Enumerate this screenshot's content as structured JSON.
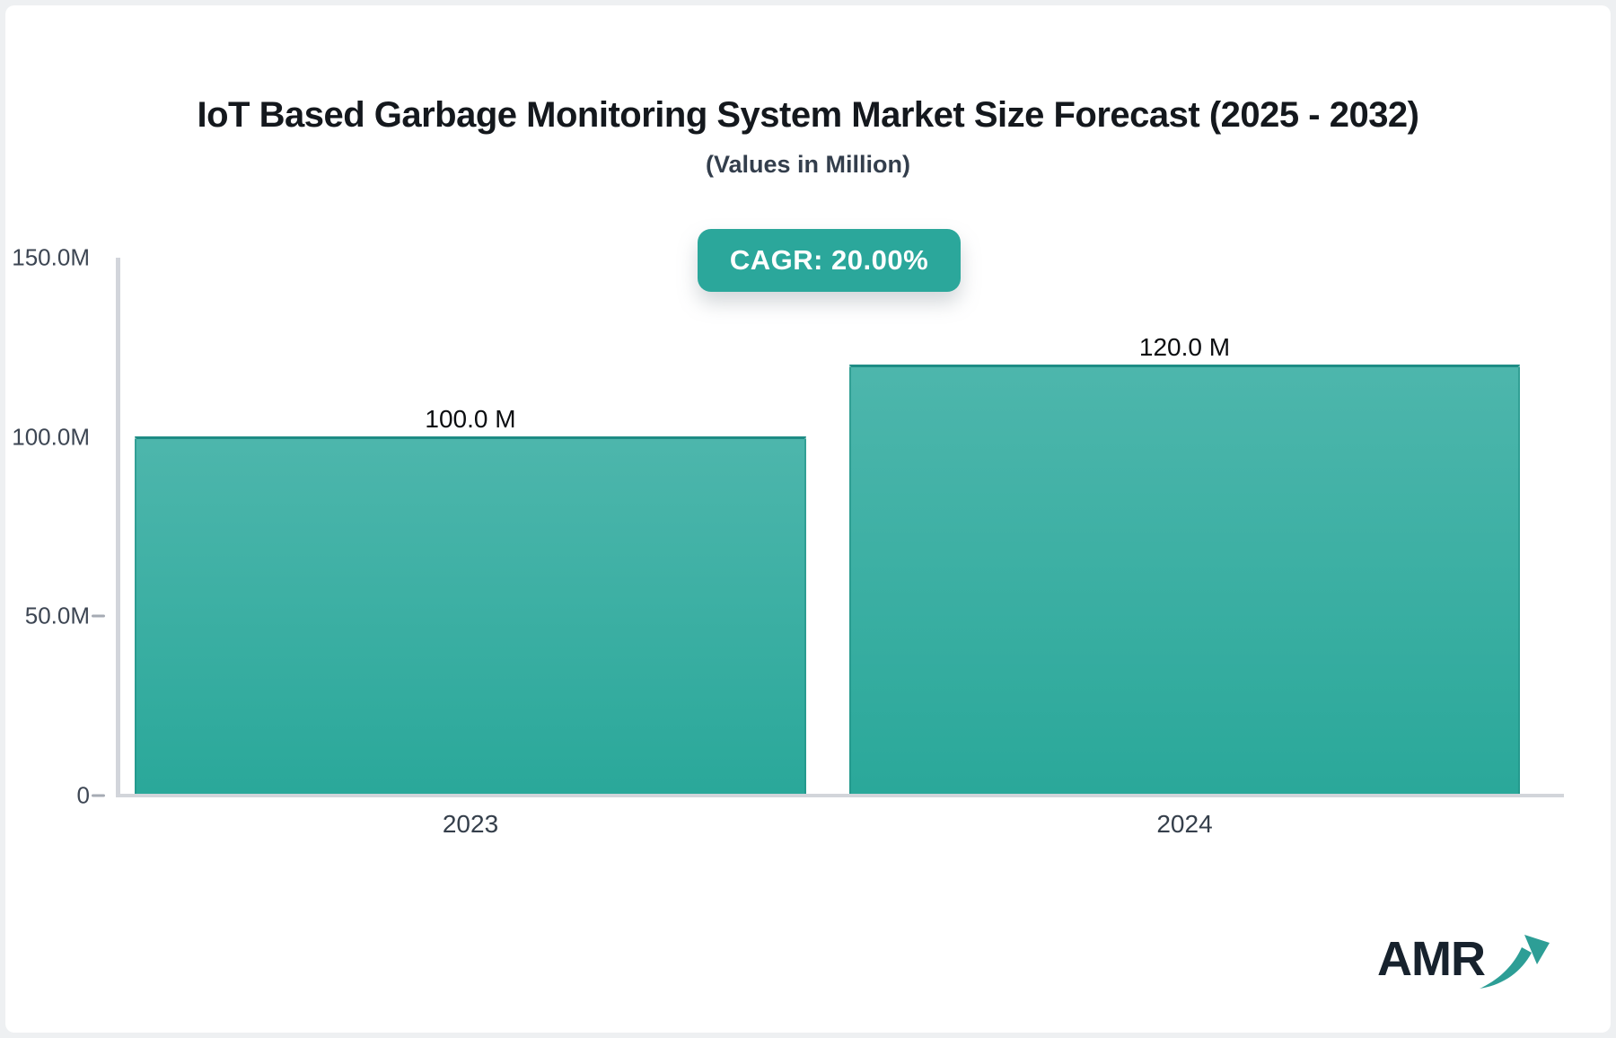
{
  "header": {
    "title": "IoT Based Garbage Monitoring System Market Size Forecast (2025 - 2032)",
    "subtitle": "(Values in Million)"
  },
  "badge": {
    "label": "CAGR: 20.00%"
  },
  "logo": {
    "text": "AMR",
    "arrow_icon": "growth-arrow-icon"
  },
  "colors": {
    "badge_bg": "#2ba79b",
    "bar_gradient_top": "#4db6ac",
    "bar_gradient_bottom": "#2aa89a",
    "bar_border": "#1e8c85",
    "axis_line": "#d2d5db",
    "tick_label": "#3d4653",
    "title_text": "#14181d",
    "value_label": "#0b0d10",
    "logo_text": "#17222d",
    "logo_arrow": "#2d9e96"
  },
  "chart_data": {
    "type": "bar",
    "title": "IoT Based Garbage Monitoring System Market Size Forecast (2025 - 2032)",
    "subtitle": "(Values in Million)",
    "annotation": "CAGR: 20.00%",
    "unit": "Million",
    "categories": [
      "2023",
      "2024"
    ],
    "values": [
      100.0,
      120.0
    ],
    "bar_labels": [
      "100.0 M",
      "120.0 M"
    ],
    "y_tick_labels": [
      "150.0M",
      "100.0M",
      "50.0M",
      "0"
    ],
    "y_tick_values": [
      150,
      100,
      50,
      0
    ],
    "y_ticks_with_dash": [
      50,
      0
    ],
    "ylim": [
      0,
      150
    ],
    "xlabel": "",
    "ylabel": "",
    "grid": false,
    "legend": false
  }
}
